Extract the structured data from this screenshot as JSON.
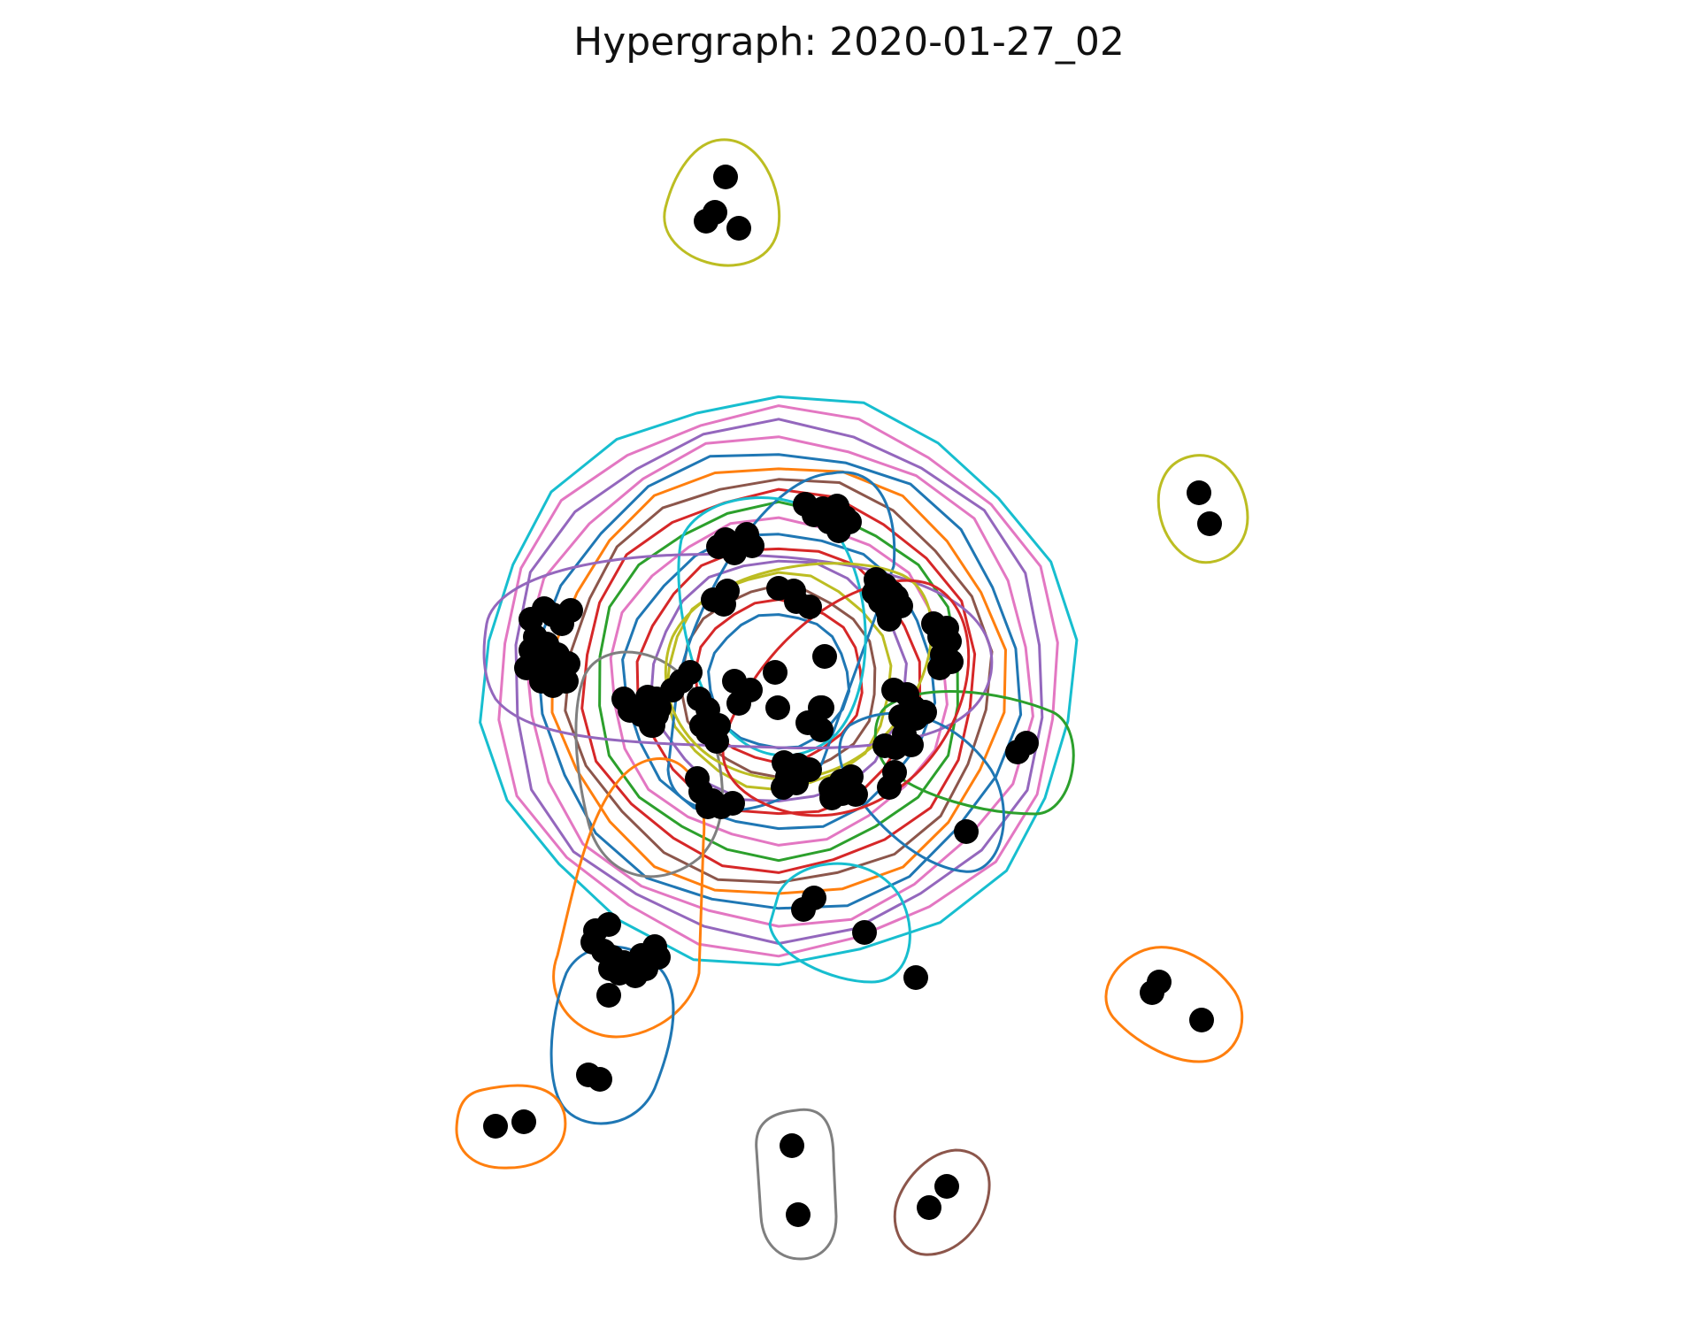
{
  "title": "Hypergraph: 2020-01-27_02",
  "node_color": "#000000",
  "palette": {
    "blue": "#1f77b4",
    "orange": "#ff7f0e",
    "green": "#2ca02c",
    "red": "#d62728",
    "purple": "#9467bd",
    "brown": "#8c564b",
    "pink": "#e377c2",
    "gray": "#7f7f7f",
    "olive": "#bcbd22",
    "cyan": "#17becf"
  },
  "hypergraph": {
    "concentric_rings": [
      "cyan",
      "pink",
      "purple",
      "pink",
      "blue",
      "orange",
      "brown",
      "red",
      "green",
      "pink",
      "blue",
      "red",
      "purple",
      "olive",
      "brown",
      "red",
      "blue"
    ],
    "central_edges": [
      {
        "name": "hyperedge-blue-vertical",
        "color": "blue"
      },
      {
        "name": "hyperedge-cyan-upper",
        "color": "cyan"
      },
      {
        "name": "hyperedge-purple-left",
        "color": "purple"
      },
      {
        "name": "hyperedge-gray-left",
        "color": "gray"
      },
      {
        "name": "hyperedge-olive-right",
        "color": "olive"
      },
      {
        "name": "hyperedge-green-right",
        "color": "green"
      },
      {
        "name": "hyperedge-blue-right",
        "color": "blue"
      },
      {
        "name": "hyperedge-red-lower",
        "color": "red"
      },
      {
        "name": "hyperedge-cyan-lower",
        "color": "cyan"
      },
      {
        "name": "hyperedge-orange-lower-left",
        "color": "orange"
      },
      {
        "name": "hyperedge-blue-lower-left",
        "color": "blue"
      }
    ],
    "isolated_edges": [
      {
        "name": "hyperedge-olive-top",
        "color": "olive"
      },
      {
        "name": "hyperedge-olive-right",
        "color": "olive"
      },
      {
        "name": "hyperedge-orange-right",
        "color": "orange"
      },
      {
        "name": "hyperedge-orange-bottom-left",
        "color": "orange"
      },
      {
        "name": "hyperedge-gray-bottom",
        "color": "gray"
      },
      {
        "name": "hyperedge-brown-bottom",
        "color": "brown"
      }
    ]
  }
}
